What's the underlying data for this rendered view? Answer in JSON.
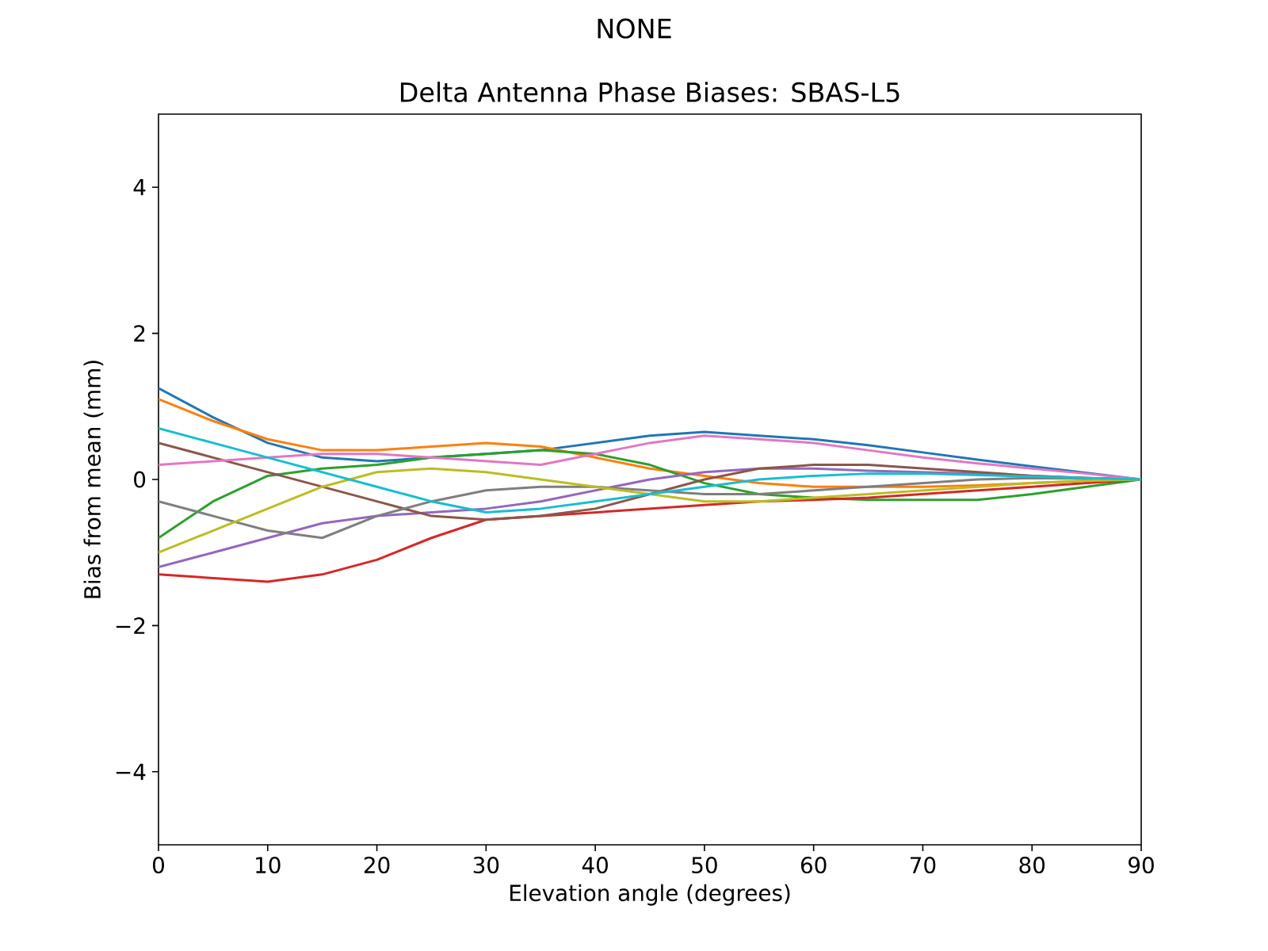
{
  "chart_data": {
    "type": "line",
    "title": "NONE",
    "subtitle": "Delta Antenna Phase Biases: SBAS-L5",
    "xlabel": "Elevation angle (degrees)",
    "ylabel": "Bias from mean (mm)",
    "x": [
      0,
      5,
      10,
      15,
      20,
      25,
      30,
      35,
      40,
      45,
      50,
      55,
      60,
      65,
      70,
      75,
      80,
      85,
      90
    ],
    "xlim": [
      0,
      90
    ],
    "xticks": [
      0,
      10,
      20,
      30,
      40,
      50,
      60,
      70,
      80,
      90
    ],
    "ylim": [
      -5,
      5
    ],
    "yticks": [
      {
        "value": -4,
        "label": "−4"
      },
      {
        "value": -2,
        "label": "−2"
      },
      0,
      2,
      4
    ],
    "marker": "none",
    "line_style": "solid",
    "series": [
      {
        "color": "#1f77b4",
        "values": [
          1.25,
          0.85,
          0.5,
          0.3,
          0.25,
          0.3,
          0.35,
          0.4,
          0.5,
          0.6,
          0.65,
          0.6,
          0.55,
          0.47,
          0.37,
          0.27,
          0.18,
          0.09,
          0
        ]
      },
      {
        "color": "#ff7f0e",
        "values": [
          1.1,
          0.8,
          0.55,
          0.4,
          0.4,
          0.45,
          0.5,
          0.45,
          0.3,
          0.15,
          0.05,
          -0.05,
          -0.1,
          -0.1,
          -0.1,
          -0.08,
          -0.05,
          -0.02,
          0
        ]
      },
      {
        "color": "#2ca02c",
        "values": [
          -0.8,
          -0.3,
          0.05,
          0.15,
          0.2,
          0.3,
          0.35,
          0.4,
          0.35,
          0.2,
          -0.05,
          -0.2,
          -0.25,
          -0.28,
          -0.28,
          -0.28,
          -0.2,
          -0.1,
          0
        ]
      },
      {
        "color": "#d62728",
        "values": [
          -1.3,
          -1.35,
          -1.4,
          -1.3,
          -1.1,
          -0.8,
          -0.55,
          -0.5,
          -0.45,
          -0.4,
          -0.35,
          -0.3,
          -0.28,
          -0.25,
          -0.2,
          -0.15,
          -0.1,
          -0.05,
          0
        ]
      },
      {
        "color": "#9467bd",
        "values": [
          -1.2,
          -1.0,
          -0.8,
          -0.6,
          -0.5,
          -0.45,
          -0.4,
          -0.3,
          -0.15,
          0.0,
          0.1,
          0.15,
          0.15,
          0.12,
          0.1,
          0.08,
          0.05,
          0.02,
          0
        ]
      },
      {
        "color": "#8c564b",
        "values": [
          0.5,
          0.3,
          0.1,
          -0.1,
          -0.3,
          -0.5,
          -0.55,
          -0.5,
          -0.4,
          -0.2,
          0.0,
          0.15,
          0.2,
          0.2,
          0.15,
          0.1,
          0.05,
          0.02,
          0
        ]
      },
      {
        "color": "#e377c2",
        "values": [
          0.2,
          0.25,
          0.3,
          0.35,
          0.35,
          0.3,
          0.25,
          0.2,
          0.35,
          0.5,
          0.6,
          0.55,
          0.5,
          0.4,
          0.3,
          0.22,
          0.15,
          0.08,
          0
        ]
      },
      {
        "color": "#7f7f7f",
        "values": [
          -0.3,
          -0.5,
          -0.7,
          -0.8,
          -0.5,
          -0.3,
          -0.15,
          -0.1,
          -0.1,
          -0.15,
          -0.2,
          -0.2,
          -0.15,
          -0.1,
          -0.05,
          0,
          0.02,
          0.01,
          0
        ]
      },
      {
        "color": "#bcbd22",
        "values": [
          -1.0,
          -0.7,
          -0.4,
          -0.1,
          0.1,
          0.15,
          0.1,
          0.0,
          -0.1,
          -0.2,
          -0.3,
          -0.3,
          -0.25,
          -0.2,
          -0.15,
          -0.1,
          -0.05,
          -0.02,
          0
        ]
      },
      {
        "color": "#17becf",
        "values": [
          0.7,
          0.5,
          0.3,
          0.1,
          -0.1,
          -0.3,
          -0.45,
          -0.4,
          -0.3,
          -0.2,
          -0.1,
          0,
          0.05,
          0.08,
          0.08,
          0.06,
          0.04,
          0.02,
          0
        ]
      }
    ]
  }
}
